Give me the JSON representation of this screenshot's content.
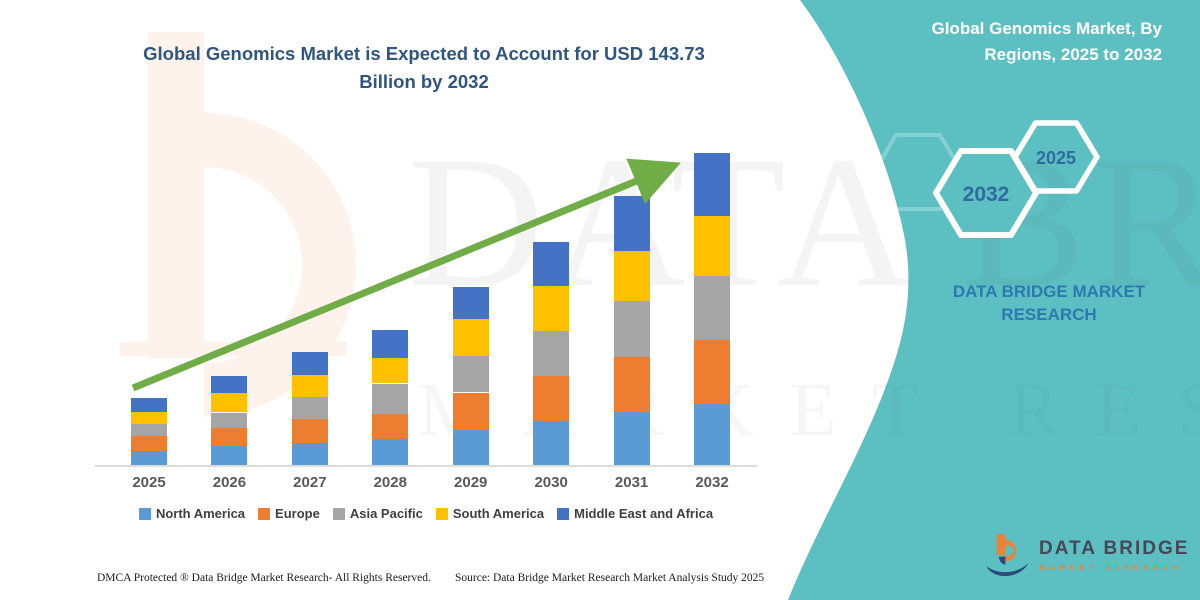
{
  "page": {
    "left_title": "Global Genomics Market is Expected to Account for USD 143.73 Billion by 2032",
    "right_panel": {
      "title": "Global Genomics Market, By Regions, 2025 to 2032",
      "hexagons": [
        {
          "label": "2032"
        },
        {
          "label": "2025"
        }
      ],
      "brand_text": "DATA BRIDGE MARKET RESEARCH"
    },
    "footer": {
      "left": "DMCA Protected ® Data Bridge Market Research-  All Rights Reserved.",
      "source": "Source: Data Bridge Market Research  Market Analysis Study 2025"
    },
    "logo": {
      "line1": "DATA BRIDGE",
      "line2": "MARKET RESEARCH"
    }
  },
  "colors": {
    "teal_panel": "#5cc0c3",
    "arrow_green": "#70ad47",
    "title_blue": "#2e5681",
    "hex_text_blue": "#2f6b9e",
    "brand_text_blue": "#2d78b0",
    "year_label_gray": "#595959",
    "logo_navy": "#2e4a7a",
    "logo_orange": "#e8833a"
  },
  "chart_data": {
    "type": "bar",
    "stacked": true,
    "title": "Global Genomics Market is Expected to Account for USD 143.73 Billion by 2032",
    "unit": "USD Billion",
    "categories": [
      "2025",
      "2026",
      "2027",
      "2028",
      "2029",
      "2030",
      "2031",
      "2032"
    ],
    "series": [
      {
        "name": "North America",
        "color": "#5B9BD5",
        "values": [
          6.6,
          8.7,
          10.2,
          11.8,
          16.3,
          20.1,
          24.4,
          28.1
        ]
      },
      {
        "name": "Europe",
        "color": "#ED7D31",
        "values": [
          6.6,
          8.4,
          11.2,
          11.9,
          17.1,
          20.9,
          25.4,
          29.5
        ]
      },
      {
        "name": "Asia Pacific",
        "color": "#A5A5A5",
        "values": [
          5.7,
          7.1,
          10.1,
          13.9,
          16.7,
          20.9,
          25.9,
          29.5
        ]
      },
      {
        "name": "South America",
        "color": "#FFC000",
        "values": [
          5.5,
          8.8,
          10.1,
          11.6,
          17.1,
          20.5,
          23.0,
          27.7
        ]
      },
      {
        "name": "Middle East and Africa",
        "color": "#4472C4",
        "values": [
          6.6,
          8.1,
          10.4,
          13.0,
          15.0,
          20.6,
          25.3,
          28.93
        ]
      }
    ],
    "totals": [
      31.0,
      41.1,
      52.0,
      62.2,
      82.2,
      103.0,
      124.0,
      143.73
    ],
    "ylim": [
      0,
      150
    ],
    "gridlines": false,
    "legend_position": "bottom",
    "annotations": [
      "upward trend arrow from 2025 to 2032"
    ]
  }
}
